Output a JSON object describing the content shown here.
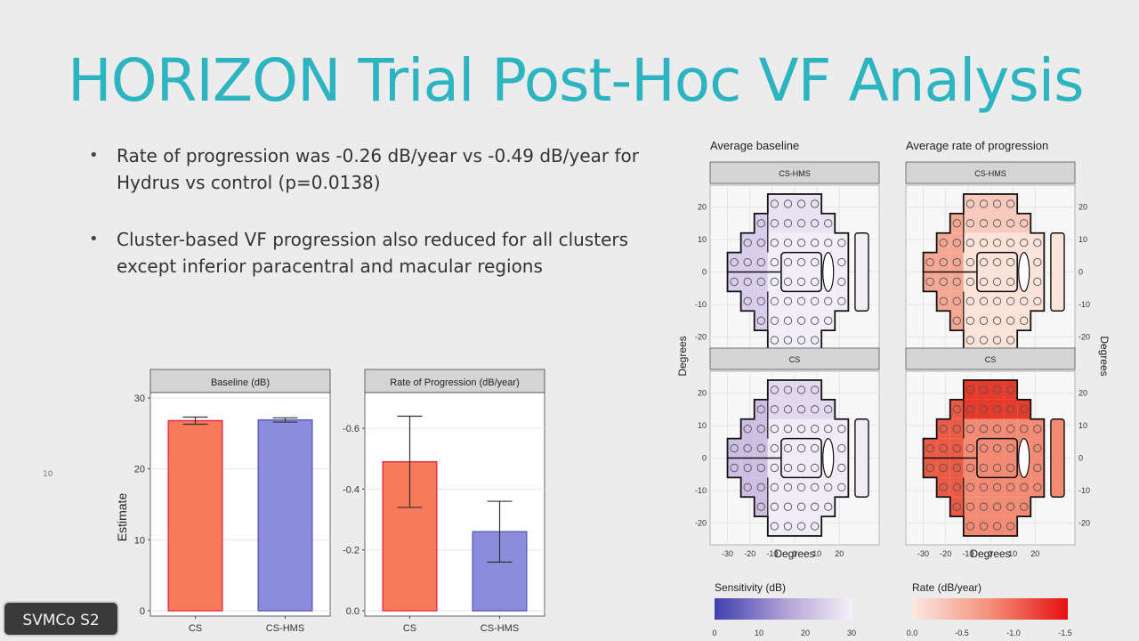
{
  "slide": {
    "title": "HORIZON Trial Post-Hoc VF Analysis",
    "bullets": [
      "Rate of progression was -0.26 dB/year vs -0.49 dB/year for Hydrus vs control (p=0.0138)",
      "Cluster-based VF progression also reduced for all clusters except inferior paracentral and macular regions"
    ],
    "side_number": "10",
    "badge": "SVMCo S2"
  },
  "colors": {
    "title": "#2cb5c0",
    "cs_bar": "#f47a5a",
    "cs_hms_bar": "#8c8cdc",
    "sensitivity_low": "#3f3fb0",
    "sensitivity_high": "#f4f0f8",
    "rate_low": "#fbe8e2",
    "rate_high": "#e51010"
  },
  "chart_data": [
    {
      "type": "bar",
      "facet": "Baseline (dB)",
      "ylabel": "Estimate",
      "categories": [
        "CS",
        "CS-HMS"
      ],
      "values": [
        26.8,
        26.9
      ],
      "error_low": [
        26.3,
        26.6
      ],
      "error_high": [
        27.3,
        27.2
      ],
      "ylim": [
        0,
        30
      ],
      "yticks": [
        0,
        10,
        20,
        30
      ],
      "ytick_labels": [
        "0",
        "10",
        "20",
        "30"
      ],
      "grid": true
    },
    {
      "type": "bar",
      "facet": "Rate of Progression (dB/year)",
      "categories": [
        "CS",
        "CS-HMS"
      ],
      "values": [
        -0.49,
        -0.26
      ],
      "error_low": [
        -0.34,
        -0.16
      ],
      "error_high": [
        -0.64,
        -0.36
      ],
      "ylim": [
        0,
        -0.7
      ],
      "yticks": [
        0,
        -0.2,
        -0.4,
        -0.6
      ],
      "ytick_labels": [
        "0.0",
        "-0.2",
        "-0.4",
        "-0.6"
      ],
      "grid": true
    },
    {
      "type": "heatmap",
      "column_titles": [
        "Average baseline",
        "Average rate of progression"
      ],
      "row_facets": [
        "CS-HMS",
        "CS"
      ],
      "xlabel": "Degrees",
      "ylabel": "Degrees",
      "xticks": [
        "-30",
        "-20",
        "-10",
        "0",
        "10",
        "20"
      ],
      "yticks": [
        "-20",
        "-10",
        "0",
        "10",
        "20"
      ],
      "legends": [
        {
          "title": "Sensitivity (dB)",
          "ticks": [
            "0",
            "10",
            "20",
            "30"
          ]
        },
        {
          "title": "Rate (dB/year)",
          "ticks": [
            "0.0",
            "-0.5",
            "-1.0",
            "-1.5"
          ]
        }
      ]
    }
  ]
}
